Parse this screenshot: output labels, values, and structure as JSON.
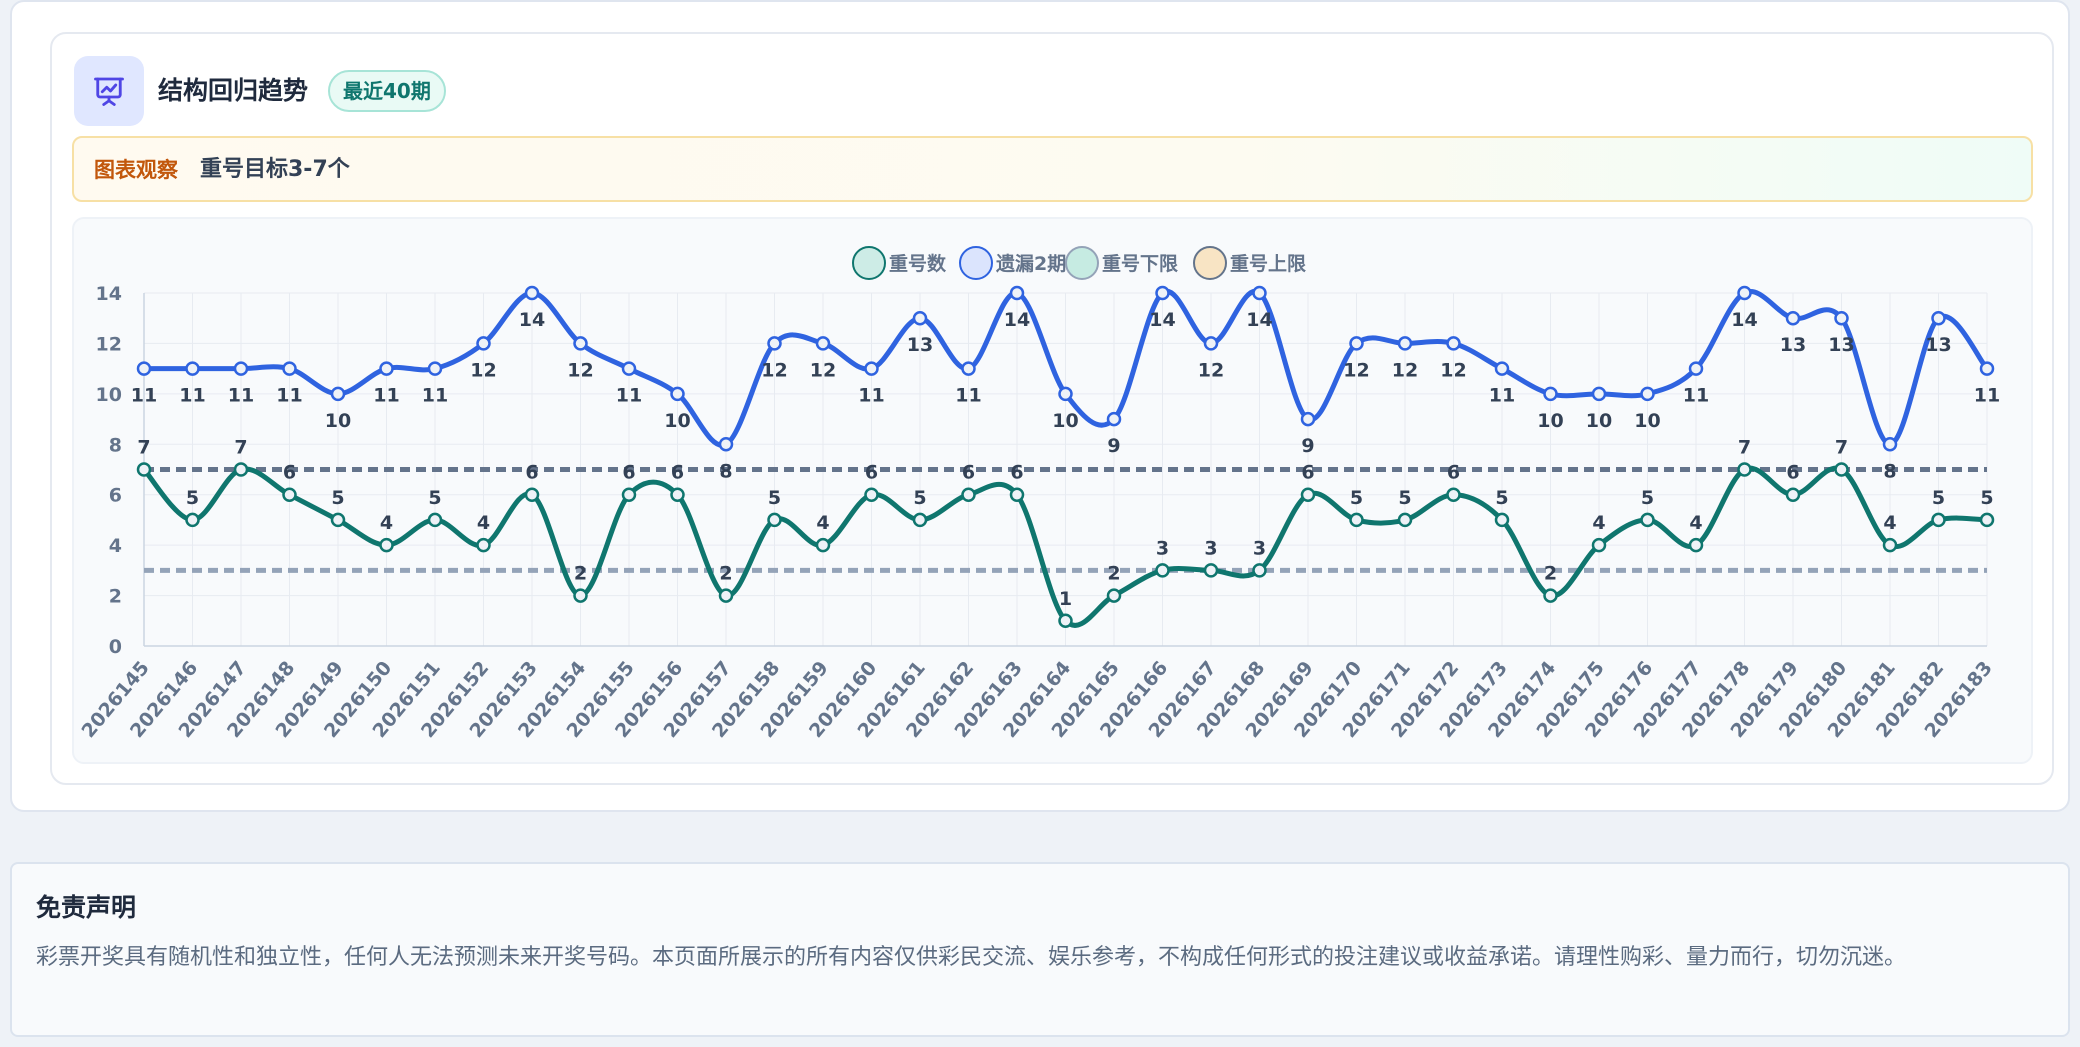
{
  "card": {
    "title": "结构回归趋势",
    "badge": "最近40期",
    "icon": "presentation-chart-icon",
    "note_label": "图表观察",
    "note_text": "重号目标3-7个"
  },
  "disclaimer": {
    "title": "免责声明",
    "text": "彩票开奖具有随机性和独立性，任何人无法预测未来开奖号码。本页面所展示的所有内容仅供彩民交流、娱乐参考，不构成任何形式的投注建议或收益承诺。请理性购彩、量力而行，切勿沉迷。"
  },
  "colors": {
    "repeat": "#0f766e",
    "missing": "#2f63e0",
    "lower": "#94a3b8",
    "upper": "#64748b",
    "accent_bg": "#e0e7ff"
  },
  "chart_data": {
    "type": "line",
    "categories": [
      "2026145",
      "2026146",
      "2026147",
      "2026148",
      "2026149",
      "2026150",
      "2026151",
      "2026152",
      "2026153",
      "2026154",
      "2026155",
      "2026156",
      "2026157",
      "2026158",
      "2026159",
      "2026160",
      "2026161",
      "2026162",
      "2026163",
      "2026164",
      "2026165",
      "2026166",
      "2026167",
      "2026168",
      "2026169",
      "2026170",
      "2026171",
      "2026172",
      "2026173",
      "2026174",
      "2026175",
      "2026176",
      "2026177",
      "2026178",
      "2026179",
      "2026180",
      "2026181",
      "2026182",
      "2026183"
    ],
    "series": [
      {
        "name": "重号数",
        "values": [
          7,
          5,
          7,
          6,
          5,
          4,
          5,
          4,
          6,
          2,
          6,
          6,
          2,
          5,
          4,
          6,
          5,
          6,
          6,
          1,
          2,
          3,
          3,
          3,
          6,
          5,
          5,
          6,
          5,
          2,
          4,
          5,
          4,
          7,
          6,
          7,
          4,
          5,
          5
        ]
      },
      {
        "name": "遗漏2期内",
        "values": [
          11,
          11,
          11,
          11,
          10,
          11,
          11,
          12,
          14,
          12,
          11,
          10,
          8,
          12,
          12,
          11,
          13,
          11,
          14,
          10,
          9,
          14,
          12,
          14,
          9,
          12,
          12,
          12,
          11,
          10,
          10,
          10,
          11,
          14,
          13,
          13,
          8,
          13,
          11
        ]
      },
      {
        "name": "重号下限",
        "values": [
          3,
          3,
          3,
          3,
          3,
          3,
          3,
          3,
          3,
          3,
          3,
          3,
          3,
          3,
          3,
          3,
          3,
          3,
          3,
          3,
          3,
          3,
          3,
          3,
          3,
          3,
          3,
          3,
          3,
          3,
          3,
          3,
          3,
          3,
          3,
          3,
          3,
          3,
          3
        ]
      },
      {
        "name": "重号上限",
        "values": [
          7,
          7,
          7,
          7,
          7,
          7,
          7,
          7,
          7,
          7,
          7,
          7,
          7,
          7,
          7,
          7,
          7,
          7,
          7,
          7,
          7,
          7,
          7,
          7,
          7,
          7,
          7,
          7,
          7,
          7,
          7,
          7,
          7,
          7,
          7,
          7,
          7,
          7,
          7
        ]
      }
    ],
    "y_ticks": [
      0,
      2,
      4,
      6,
      8,
      10,
      12,
      14
    ],
    "ylim": [
      0,
      14
    ],
    "grid": true,
    "legend_position": "top-center"
  }
}
